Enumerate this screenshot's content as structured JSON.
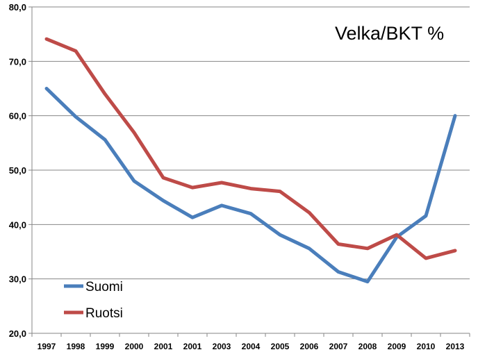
{
  "chart_data": {
    "type": "line",
    "title": "Velka/BKT %",
    "xlabel": "",
    "ylabel": "",
    "categories": [
      "1997",
      "1998",
      "1999",
      "2000",
      "2001",
      "2001",
      "2003",
      "2004",
      "2005",
      "2006",
      "2007",
      "2008",
      "2009",
      "2010",
      "2013"
    ],
    "ylim": [
      20,
      80
    ],
    "yticks": [
      "20,0",
      "30,0",
      "40,0",
      "50,0",
      "60,0",
      "70,0",
      "80,0"
    ],
    "ytick_values": [
      20,
      30,
      40,
      50,
      60,
      70,
      80
    ],
    "grid": "horizontal",
    "legend_position": "bottom-left",
    "series": [
      {
        "name": "Suomi",
        "color": "#4a7ebb",
        "values": [
          65.0,
          59.8,
          55.6,
          48.0,
          44.4,
          41.3,
          43.5,
          42.0,
          38.1,
          35.6,
          31.3,
          29.5,
          37.7,
          41.6,
          60.0
        ]
      },
      {
        "name": "Ruotsi",
        "color": "#be4b48",
        "values": [
          74.1,
          71.9,
          64.0,
          56.9,
          48.6,
          46.8,
          47.7,
          46.6,
          46.1,
          42.2,
          36.4,
          35.6,
          38.1,
          33.8,
          35.2
        ]
      }
    ]
  }
}
